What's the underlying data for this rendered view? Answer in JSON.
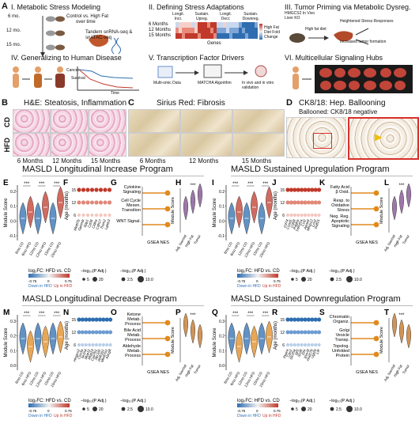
{
  "panels": {
    "A": {
      "letter": "A",
      "title": "I. Metabolic Stress Modeling",
      "timepoints": [
        "6 mo.",
        "12 mo.",
        "15 mo."
      ],
      "note1": "Control vs. High Fat",
      "note2": "over time",
      "note3": "Tandem snRNA-seq &",
      "note4": "snATAC-seq"
    },
    "II": {
      "title": "II. Defining Stress Adaptations",
      "cols": [
        "Longit.\nIncr.",
        "Sustain.\nUpreg.",
        "Longit.\nDecr.",
        "Sustain.\nDownreg."
      ],
      "rows": [
        "6 Months",
        "12 Months",
        "15 Months"
      ],
      "xaxis": "Genes",
      "legend": "High Fat Diet Fold Change"
    },
    "III": {
      "title": "III. Tumor Priming via Metabolic Dysreg.",
      "mouse": "HMGCS2 In Vivo Liver KO",
      "diet": "High fat diet",
      "stress": "Heightened Stress Responses",
      "tumor": "Increased tumor formation"
    },
    "IV": {
      "title": "IV. Generalizing to Human Disease",
      "cancer": "Cancer",
      "survival": "Survival",
      "time": "Time"
    },
    "V": {
      "title": "V. Transcription Factor Drivers",
      "multiomic": "Multi-omic Data",
      "matcha": "MATCHA Algorithm",
      "validation": "In vivo and in vitro validation"
    },
    "VI": {
      "title": "VI. Multicellular Signaling Hubs"
    },
    "B": {
      "letter": "B",
      "title": "H&E: Steatosis, Inflammation",
      "cd": "CD",
      "hfd": "HFD",
      "times": [
        "6 Months",
        "12 Months",
        "15 Months"
      ]
    },
    "C": {
      "letter": "C",
      "title": "Sirius Red: Fibrosis",
      "times": [
        "6 Months",
        "12 Months",
        "15 Months"
      ]
    },
    "D": {
      "letter": "D",
      "title": "CK8/18: Hep. Ballooning",
      "subtitle": "Ballooned: CK8/18 negative"
    }
  },
  "sections": [
    {
      "title": "MASLD Longitudinal Increase Program",
      "letters": [
        "E",
        "F",
        "G",
        "H"
      ],
      "genes": [
        "Mettl7b",
        "Gpnmb",
        "Spp1",
        "Cd36",
        "Cidea",
        "Cdh17",
        "Trem2",
        "Lgals3"
      ],
      "terms": [
        "Cytokine Signaling",
        "Cell Cycle Mesen. Transition",
        "WNT Signal."
      ],
      "hgroups": [
        "Adj. Normal",
        "High Fat",
        "Tumor"
      ],
      "color": "#7b4a8a"
    },
    {
      "title": "MASLD Sustained Upregulation Program",
      "letters": [
        "I",
        "J",
        "K",
        "L"
      ],
      "genes": [
        "Cd74",
        "Ccnd1",
        "Cd68",
        "Pdgfra",
        "Tnfrsf1a",
        "Ccl2",
        "Apoa4",
        "Mmp12",
        "Lcn2",
        "Gdf15"
      ],
      "terms": [
        "Fatty Acid β Oxid.",
        "Resp. to Oxidative Stress",
        "Neg. Reg. Apoptotic Signaling"
      ],
      "hgroups": [
        "Adj. Normal",
        "High Fat",
        "Tumor"
      ],
      "color": "#7b4a8a"
    },
    {
      "title": "MASLD Longitudinal Decrease Program",
      "letters": [
        "M",
        "N",
        "O",
        "P"
      ],
      "genes": [
        "Hmgcs2",
        "Ces3a",
        "Nr1h4",
        "Mup11",
        "Mup19",
        "Cyp7b1",
        "Akr1d1",
        "Aldh1b1",
        "Mettl7a1",
        "Abcg8"
      ],
      "terms": [
        "Ketone Metab. Process",
        "Bile Acid Metab. Process",
        "Aldehyde Metab. Process"
      ],
      "hgroups": [
        "Adj. Normal",
        "High Fat",
        "Tumor"
      ],
      "color": "#c07020"
    },
    {
      "title": "MASLD Sustained Downregulation Program",
      "letters": [
        "Q",
        "R",
        "S",
        "T"
      ],
      "genes": [
        "Ppara",
        "Cps1",
        "Slc25a",
        "Igf1",
        "Scd5",
        "Ghr",
        "Elovl3",
        "Hsd17b",
        "Ugt2b",
        "Lifr"
      ],
      "terms": [
        "Chromatin Organiz.",
        "Golgi Vesicle Transp.",
        "Topolog. Unfolded Protein"
      ],
      "hgroups": [
        "Adj. Normal",
        "High Fat",
        "Tumor"
      ],
      "color": "#c07020"
    }
  ],
  "common": {
    "module_score": "Module Score",
    "age": "Age (months)",
    "ages": [
      "15",
      "12",
      "6"
    ],
    "gsea": "GSEA NES",
    "sig": "***",
    "violin_groups": [
      "6mo CD",
      "6mo HFD",
      "12mo CD",
      "12mo HFD",
      "15mo CD",
      "15mo HFD"
    ],
    "fc_label": "log₂FC: HFD vs. CD",
    "down": "Down in HFD",
    "up": "Up in HFD",
    "fc_min": "-0.75",
    "fc_zero": "0",
    "fc_max": "0.75",
    "p_label": "−log₁₀(P Adj.)",
    "p_sizes": [
      "5",
      "20"
    ],
    "p_sizes2": [
      "2.5",
      "10.0"
    ],
    "y_ticks_up": [
      "0.2",
      "0.1",
      "0.0",
      "-0.1"
    ],
    "y_ticks_down": [
      "0.3",
      "0.2",
      "0.1",
      "0.0"
    ]
  },
  "colors": {
    "hfd_red": "#c0392b",
    "cd_blue": "#2d6db0",
    "orange": "#e08a1e",
    "purple": "#8d5ba8"
  }
}
